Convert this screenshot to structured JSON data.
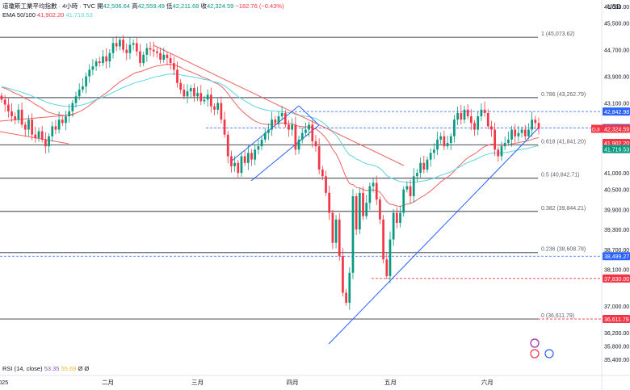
{
  "header": {
    "title": "道瓊斯工業平均指數 · 4小時 · TVC",
    "open_label": "開",
    "open": "42,506.64",
    "high_label": "高",
    "high": "42,559.49",
    "low_label": "低",
    "low": "42,211.68",
    "close_label": "收",
    "close": "42,324.59",
    "change": "−182.76 (−0.43%)",
    "ema_label": "EMA 50/100",
    "ema50": "41,902.20",
    "ema100": "41,716.53",
    "currency": "USD"
  },
  "rsi": {
    "label": "RSI (14, close)",
    "value": "53.35",
    "avg": "55.69",
    "x1": "Ø",
    "x2": "Ø"
  },
  "colors": {
    "up": "#089981",
    "down": "#f23645",
    "ema50": "#f06262",
    "ema100": "#5ad6e0",
    "trend": "#2962ff",
    "fib": "#5d606b"
  },
  "chart_data": {
    "type": "candlestick",
    "ylim": [
      35400,
      46000
    ],
    "y_ticks": [
      "46,000.00",
      "45,500.00",
      "44,700.00",
      "43,900.00",
      "43,100.00",
      "41,000.00",
      "40,500.00",
      "39,900.00",
      "39,300.00",
      "38,700.00",
      "38,100.00",
      "37,000.00",
      "36,200.00",
      "35,800.00",
      "35,400.00"
    ],
    "x_ticks": [
      {
        "label": "2025",
        "t": 0
      },
      {
        "label": "二月",
        "t": 0.179
      },
      {
        "label": "三月",
        "t": 0.33
      },
      {
        "label": "四月",
        "t": 0.49
      },
      {
        "label": "五月",
        "t": 0.655
      },
      {
        "label": "六月",
        "t": 0.818
      }
    ],
    "fib_levels": [
      {
        "label": "1 (45,073.62)",
        "value": 45073.62
      },
      {
        "label": "0.786 (43,262.79)",
        "value": 43262.79
      },
      {
        "label": "0.618 (41,841.20)",
        "value": 41841.2
      },
      {
        "label": "0.5 (40,842.71)",
        "value": 40842.71
      },
      {
        "label": "0.382 (39,844.21)",
        "value": 39844.21
      },
      {
        "label": "0.236 (38,608.78)",
        "value": 38608.78
      },
      {
        "label": "0 (36,611.79)",
        "value": 36611.79
      }
    ],
    "price_tags": [
      {
        "text": "42,842.98",
        "value": 42842.98,
        "color": "#2962ff"
      },
      {
        "text": "42,347.00",
        "value": 42347,
        "color": "#2962ff"
      },
      {
        "text": "42,324.59",
        "value": 42324.59,
        "color": "#f23645",
        "prefix": "DJI"
      },
      {
        "text": "41,902.20",
        "value": 41902.2,
        "color": "#f23645"
      },
      {
        "text": "41,716.53",
        "value": 41716.53,
        "color": "#089981"
      },
      {
        "text": "38,499.27",
        "value": 38499.27,
        "color": "#2962ff"
      },
      {
        "text": "37,830.00",
        "value": 37830,
        "color": "#f23645"
      },
      {
        "text": "36,611.79",
        "value": 36611.79,
        "color": "#f23645"
      }
    ],
    "candles_close": [
      43200,
      43050,
      42850,
      42700,
      42600,
      42900,
      42450,
      42300,
      42600,
      42150,
      42050,
      42250,
      42000,
      41800,
      42100,
      42400,
      42300,
      42600,
      42500,
      42700,
      42850,
      43100,
      43300,
      43500,
      43600,
      43900,
      44100,
      44200,
      44350,
      44300,
      44500,
      44350,
      44600,
      44900,
      44800,
      45000,
      44700,
      44600,
      44850,
      44900,
      44650,
      44300,
      44550,
      44750,
      44700,
      44650,
      44600,
      44400,
      44550,
      44450,
      44300,
      44100,
      43700,
      43500,
      43300,
      43450,
      43550,
      43300,
      43400,
      43150,
      43200,
      43350,
      43000,
      42900,
      43100,
      42600,
      42150,
      41500,
      41200,
      41300,
      41000,
      41500,
      41300,
      41600,
      41400,
      41700,
      41800,
      42000,
      42200,
      42300,
      42600,
      42500,
      42700,
      42800,
      42450,
      42300,
      42450,
      41700,
      42000,
      42200,
      42300,
      42450,
      41950,
      41800,
      41100,
      40900,
      40400,
      39800,
      38900,
      39600,
      38500,
      37400,
      37100,
      38000,
      40300,
      39300,
      40400,
      39700,
      40100,
      40600,
      40700,
      40200,
      39600,
      38400,
      37900,
      39000,
      39800,
      39500,
      39800,
      40500,
      40600,
      40300,
      40900,
      41000,
      41300,
      41100,
      41400,
      41600,
      41700,
      42000,
      42100,
      41800,
      41900,
      42100,
      42600,
      42800,
      42600,
      42900,
      42700,
      42500,
      42300,
      42700,
      42900,
      42800,
      42400,
      42300,
      41700,
      41500,
      41800,
      41900,
      42000,
      42300,
      42100,
      42200,
      42300,
      42100,
      42300,
      42600,
      42500,
      42324
    ]
  }
}
